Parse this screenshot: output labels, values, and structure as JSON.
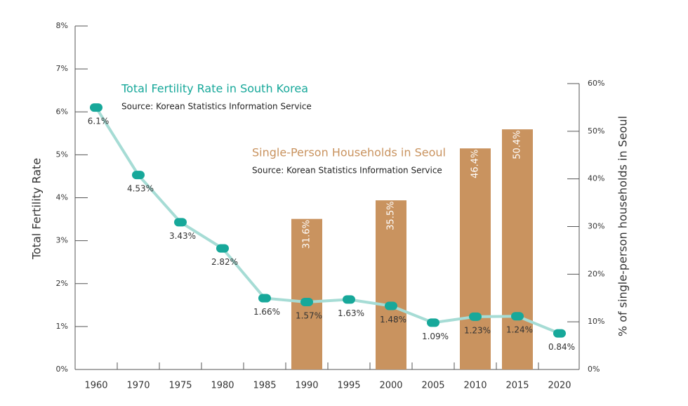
{
  "chart_data": {
    "type": "combo",
    "categories": [
      "1960",
      "1970",
      "1975",
      "1980",
      "1985",
      "1990",
      "1995",
      "2000",
      "2005",
      "2010",
      "2015",
      "2020"
    ],
    "series": [
      {
        "name": "Total Fertility Rate in South Korea",
        "source": "Source: Korean Statistics Information Service",
        "type": "line",
        "color": "#a6dcd5",
        "marker_color": "#17a89a",
        "values": [
          6.1,
          4.53,
          3.43,
          2.82,
          1.66,
          1.57,
          1.63,
          1.48,
          1.09,
          1.23,
          1.24,
          0.84
        ],
        "value_labels": [
          "6.1%",
          "4.53%",
          "3.43%",
          "2.82%",
          "1.66%",
          "1.57%",
          "1.63%",
          "1.48%",
          "1.09%",
          "1.23%",
          "1.24%",
          "0.84%"
        ]
      },
      {
        "name": "Single-Person Households in Seoul",
        "source": "Source: Korean Statistics Information Service",
        "type": "bar",
        "color": "#c9935f",
        "axis": "y2",
        "values": [
          null,
          null,
          null,
          null,
          null,
          31.6,
          null,
          35.5,
          null,
          46.4,
          50.4,
          null
        ],
        "value_labels": [
          null,
          null,
          null,
          null,
          null,
          "31.6%",
          null,
          "35.5%",
          null,
          "46.4%",
          "50.4%",
          null
        ]
      }
    ],
    "ylabel": "Total Fertility Rate",
    "y2label": "% of single-person households in Seoul",
    "ylim": [
      0,
      8
    ],
    "yticks": [
      {
        "value": 0,
        "label": "0%"
      },
      {
        "value": 1,
        "label": "1%"
      },
      {
        "value": 2,
        "label": "2%"
      },
      {
        "value": 3,
        "label": "3%"
      },
      {
        "value": 4,
        "label": "4%"
      },
      {
        "value": 5,
        "label": "5%"
      },
      {
        "value": 6,
        "label": "6%"
      },
      {
        "value": 7,
        "label": "7%"
      },
      {
        "value": 8,
        "label": "8%"
      }
    ],
    "y2lim": [
      0,
      60
    ],
    "y2ticks": [
      {
        "value": 0,
        "label": "0%"
      },
      {
        "value": 10,
        "label": "10%"
      },
      {
        "value": 20,
        "label": "20%"
      },
      {
        "value": 30,
        "label": "30%"
      },
      {
        "value": 40,
        "label": "40%"
      },
      {
        "value": 50,
        "label": "50%"
      },
      {
        "value": 60,
        "label": "60%"
      }
    ]
  }
}
